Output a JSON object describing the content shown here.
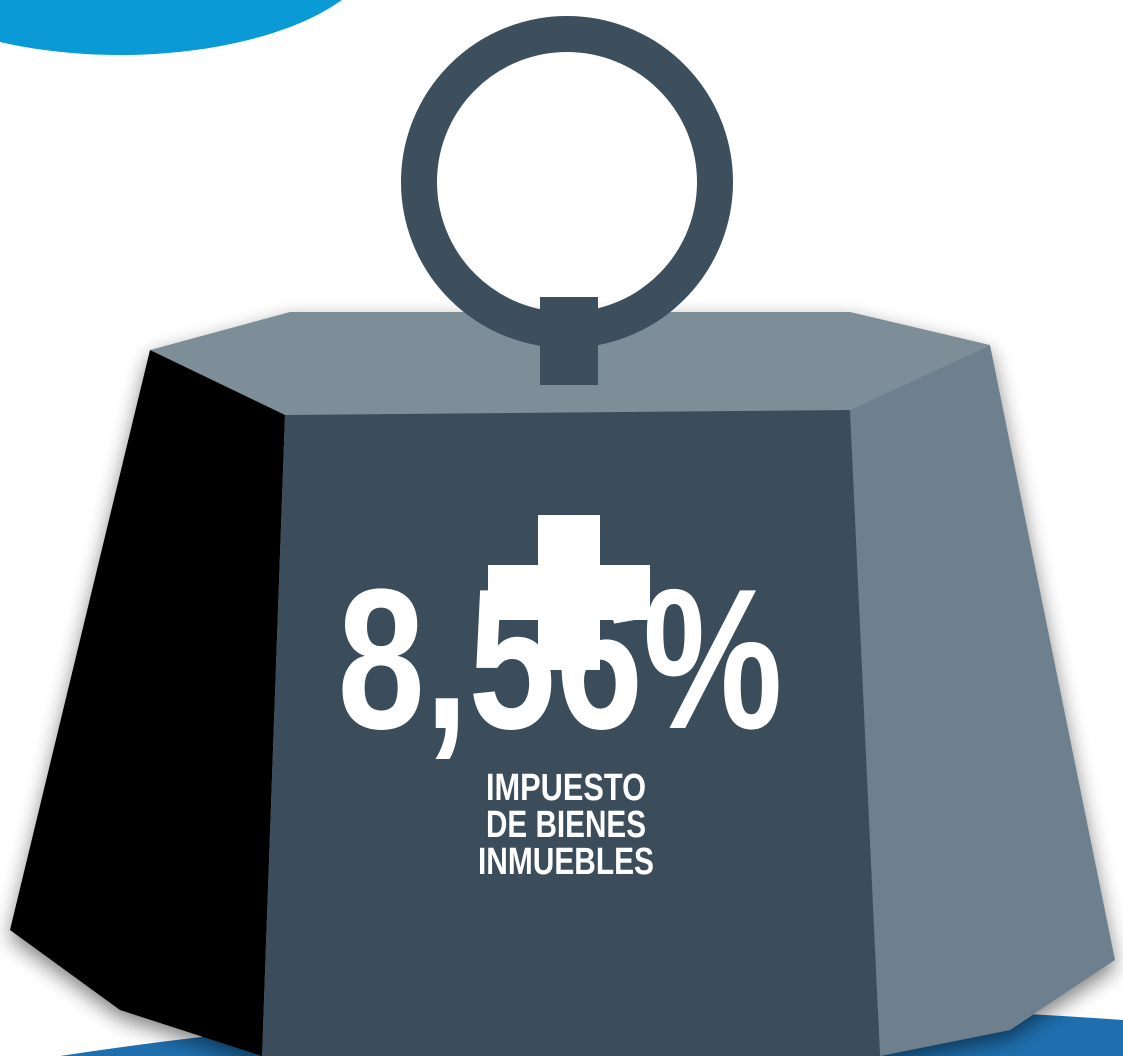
{
  "figure": {
    "amount": "8,56%",
    "caption_lines": [
      "IMPUESTO",
      "DE BIENES",
      "INMUEBLES"
    ]
  }
}
